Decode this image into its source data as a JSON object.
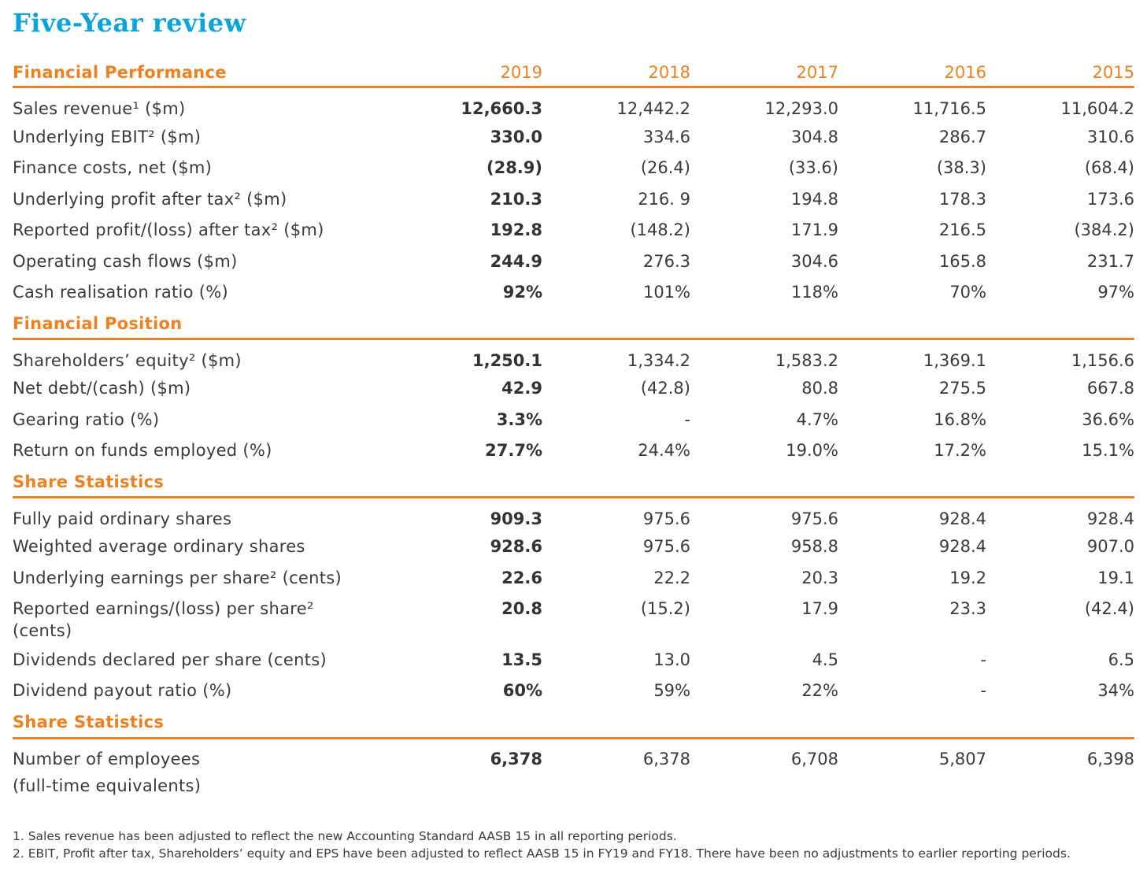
{
  "title": "Five-Year review",
  "years": [
    "2019",
    "2018",
    "2017",
    "2016",
    "2015"
  ],
  "sections": [
    {
      "heading": "Financial Performance",
      "show_years": true,
      "rows": [
        {
          "label": "Sales revenue¹ ($m)",
          "values": [
            "12,660.3",
            "12,442.2",
            "12,293.0",
            "11,716.5",
            "11,604.2"
          ]
        },
        {
          "label": "Underlying EBIT² ($m)",
          "values": [
            "330.0",
            "334.6",
            "304.8",
            "286.7",
            "310.6"
          ]
        },
        {
          "label": "Finance costs, net ($m)",
          "values": [
            "(28.9)",
            "(26.4)",
            "(33.6)",
            "(38.3)",
            "(68.4)"
          ]
        },
        {
          "label": "Underlying profit after tax² ($m)",
          "values": [
            "210.3",
            "216. 9",
            "194.8",
            "178.3",
            "173.6"
          ]
        },
        {
          "label": "Reported profit/(loss) after tax² ($m)",
          "values": [
            "192.8",
            "(148.2)",
            "171.9",
            "216.5",
            "(384.2)"
          ]
        },
        {
          "label": "Operating cash flows ($m)",
          "values": [
            "244.9",
            "276.3",
            "304.6",
            "165.8",
            "231.7"
          ]
        },
        {
          "label": "Cash realisation ratio (%)",
          "values": [
            "92%",
            "101%",
            "118%",
            "70%",
            "97%"
          ]
        }
      ]
    },
    {
      "heading": "Financial Position",
      "show_years": false,
      "rows": [
        {
          "label": "Shareholders’ equity² ($m)",
          "values": [
            "1,250.1",
            "1,334.2",
            "1,583.2",
            "1,369.1",
            "1,156.6"
          ]
        },
        {
          "label": "Net debt/(cash) ($m)",
          "values": [
            "42.9",
            "(42.8)",
            "80.8",
            "275.5",
            "667.8"
          ]
        },
        {
          "label": "Gearing ratio (%)",
          "values": [
            "3.3%",
            "-",
            "4.7%",
            "16.8%",
            "36.6%"
          ]
        },
        {
          "label": "Return on funds employed (%)",
          "values": [
            "27.7%",
            "24.4%",
            "19.0%",
            "17.2%",
            "15.1%"
          ]
        }
      ]
    },
    {
      "heading": "Share Statistics",
      "show_years": false,
      "rows": [
        {
          "label": "Fully paid ordinary shares",
          "values": [
            "909.3",
            "975.6",
            "975.6",
            "928.4",
            "928.4"
          ]
        },
        {
          "label": "Weighted average ordinary shares",
          "values": [
            "928.6",
            "975.6",
            "958.8",
            "928.4",
            "907.0"
          ]
        },
        {
          "label": "Underlying earnings per share² (cents)",
          "values": [
            "22.6",
            "22.2",
            "20.3",
            "19.2",
            "19.1"
          ]
        },
        {
          "label": "Reported earnings/(loss) per share² (cents)",
          "values": [
            "20.8",
            "(15.2)",
            "17.9",
            "23.3",
            "(42.4)"
          ]
        },
        {
          "label": "Dividends declared per share (cents)",
          "values": [
            "13.5",
            "13.0",
            "4.5",
            "-",
            "6.5"
          ]
        },
        {
          "label": "Dividend payout ratio (%)",
          "values": [
            "60%",
            "59%",
            "22%",
            "-",
            "34%"
          ]
        }
      ]
    },
    {
      "heading": "Share Statistics",
      "show_years": false,
      "rows": [
        {
          "label": "Number of employees",
          "sublabel": "(full-time equivalents)",
          "values": [
            "6,378",
            "6,378",
            "6,708",
            "5,807",
            "6,398"
          ]
        }
      ]
    }
  ],
  "footnotes": [
    "1.  Sales revenue has been adjusted to reflect the new Accounting Standard AASB 15 in all reporting periods.",
    "2.  EBIT, Profit after tax, Shareholders’ equity and EPS have been adjusted to reflect AASB 15 in FY19 and FY18. There have been no adjustments to earlier reporting periods."
  ]
}
